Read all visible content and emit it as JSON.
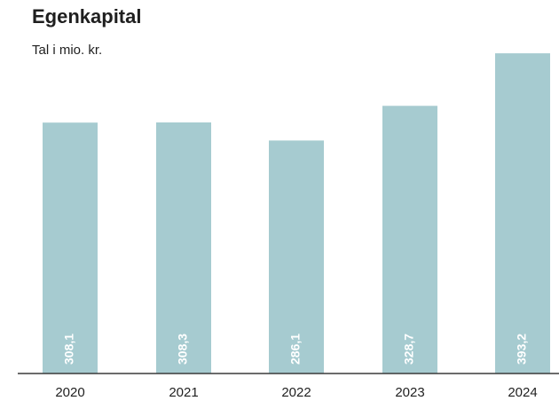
{
  "chart_data": {
    "type": "bar",
    "title": "Egenkapital",
    "subtitle": "Tal i mio. kr.",
    "categories": [
      "2020",
      "2021",
      "2022",
      "2023",
      "2024"
    ],
    "values": [
      308.1,
      308.3,
      286.1,
      328.7,
      393.2
    ],
    "value_labels": [
      "308,1",
      "308,3",
      "286,1",
      "328,7",
      "393,2"
    ],
    "ylim": [
      0,
      400
    ],
    "bar_color": "#a6cbd0",
    "axis_color": "#3a3a3a",
    "grid": false,
    "legend": "none"
  }
}
